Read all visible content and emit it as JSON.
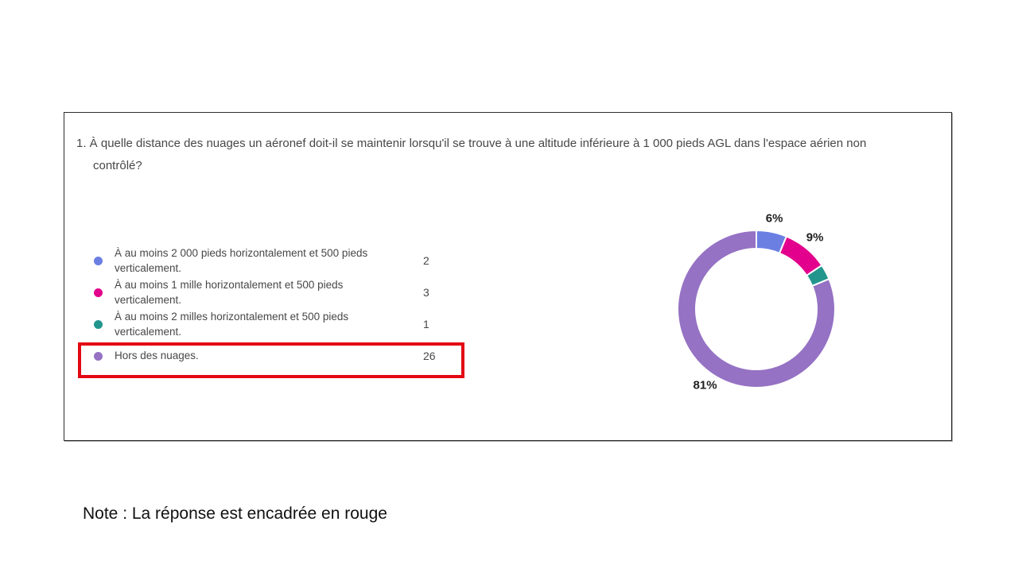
{
  "question": {
    "text": "1. À quelle distance des nuages un aéronef doit-il se maintenir lorsqu'il se trouve à une altitude inférieure à 1 000 pieds AGL dans l'espace aérien non contrôlé?"
  },
  "options": [
    {
      "label": "À au moins 2 000 pieds horizontalement et 500 pieds verticalement.",
      "count": "2",
      "color": "#6b7fe3",
      "highlighted": false
    },
    {
      "label": "À au moins 1 mille horizontalement et 500 pieds verticalement.",
      "count": "3",
      "color": "#e3008c",
      "highlighted": false
    },
    {
      "label": "À au moins 2 milles horizontalement et 500 pieds verticalement.",
      "count": "1",
      "color": "#22958d",
      "highlighted": false
    },
    {
      "label": "Hors des nuages.",
      "count": "26",
      "color": "#9572c4",
      "highlighted": true
    }
  ],
  "highlight": {
    "color": "#e30613"
  },
  "note": {
    "text": "Note : La réponse est encadrée en rouge"
  },
  "chart_data": {
    "type": "pie",
    "subtype": "donut",
    "categories": [
      "À au moins 2 000 pieds horizontalement et 500 pieds verticalement.",
      "À au moins 1 mille horizontalement et 500 pieds verticalement.",
      "À au moins 2 milles horizontalement et 500 pieds verticalement.",
      "Hors des nuages."
    ],
    "values": [
      2,
      3,
      1,
      26
    ],
    "percent_labels": [
      "6%",
      "9%",
      "",
      "81%"
    ],
    "colors": [
      "#6b7fe3",
      "#e3008c",
      "#22958d",
      "#9572c4"
    ],
    "start_angle_deg": 0,
    "direction": "clockwise",
    "outer_radius": 99,
    "inner_radius": 76,
    "label_radius": 116,
    "legend_position": "left",
    "separator_color": "#ffffff"
  }
}
